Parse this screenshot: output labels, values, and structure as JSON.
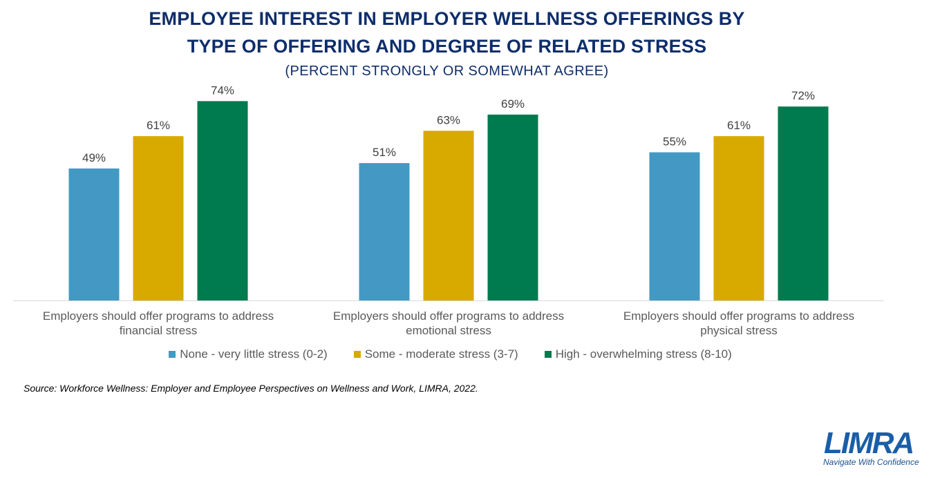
{
  "chart_data": {
    "type": "bar",
    "title": "EMPLOYEE INTEREST IN EMPLOYER WELLNESS OFFERINGS BY TYPE OF OFFERING AND DEGREE OF RELATED STRESS",
    "title_lines": [
      "EMPLOYEE INTEREST IN EMPLOYER WELLNESS OFFERINGS BY",
      "TYPE OF OFFERING AND DEGREE OF RELATED STRESS"
    ],
    "subtitle": "(PERCENT STRONGLY OR SOMEWHAT AGREE)",
    "categories": [
      "Employers should offer programs to address financial stress",
      "Employers should offer programs to address emotional stress",
      "Employers should offer programs to address physical stress"
    ],
    "category_lines": [
      [
        "Employers should offer programs to address",
        "financial stress"
      ],
      [
        "Employers should offer programs to address",
        "emotional stress"
      ],
      [
        "Employers should offer programs to address",
        "physical stress"
      ]
    ],
    "series": [
      {
        "name": "None - very little stress (0-2)",
        "color": "#4399c3",
        "values": [
          49,
          51,
          55
        ],
        "labels": [
          "49%",
          "51%",
          "55%"
        ]
      },
      {
        "name": "Some - moderate stress (3-7)",
        "color": "#d8aa00",
        "values": [
          61,
          63,
          61
        ],
        "labels": [
          "61%",
          "63%",
          "61%"
        ]
      },
      {
        "name": "High - overwhelming stress (8-10)",
        "color": "#007a4f",
        "values": [
          74,
          69,
          72
        ],
        "labels": [
          "74%",
          "69%",
          "72%"
        ]
      }
    ],
    "ylim": [
      0,
      80
    ],
    "grid": false,
    "legend": "bottom",
    "xlabel": "",
    "ylabel": ""
  },
  "source": "Source: Workforce Wellness: Employer and Employee Perspectives on Wellness and Work, LIMRA, 2022.",
  "logo": {
    "text": "LIMRA",
    "tagline": "Navigate With Confidence",
    "color": "#1a5ea8"
  }
}
